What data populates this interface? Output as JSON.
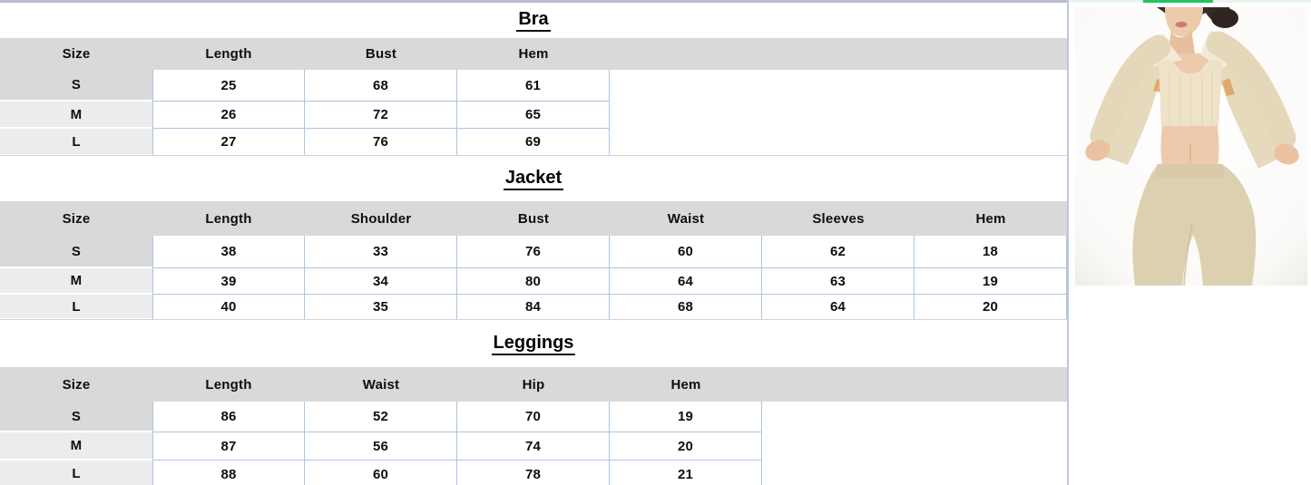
{
  "colors": {
    "header_gray": "#d9d9d9",
    "size_cell_gray": "#ececec",
    "cell_border_blue": "#a9c6e4",
    "top_accent_line": "#b6bad2",
    "panel_divider": "#bdc8da",
    "section_divider": "#d4d4d4",
    "progress_green": "#21c45d",
    "progress_track": "#e9f5ec",
    "text": "#0e0e0e"
  },
  "sections": [
    {
      "title": "Bra",
      "columns": [
        "Size",
        "Length",
        "Bust",
        "Hem"
      ],
      "rows": [
        {
          "size": "S",
          "values": [
            "25",
            "68",
            "61"
          ]
        },
        {
          "size": "M",
          "values": [
            "26",
            "72",
            "65"
          ]
        },
        {
          "size": "L",
          "values": [
            "27",
            "76",
            "69"
          ]
        }
      ]
    },
    {
      "title": "Jacket",
      "columns": [
        "Size",
        "Length",
        "Shoulder",
        "Bust",
        "Waist",
        "Sleeves",
        "Hem"
      ],
      "rows": [
        {
          "size": "S",
          "values": [
            "38",
            "33",
            "76",
            "60",
            "62",
            "18"
          ]
        },
        {
          "size": "M",
          "values": [
            "39",
            "34",
            "80",
            "64",
            "63",
            "19"
          ]
        },
        {
          "size": "L",
          "values": [
            "40",
            "35",
            "84",
            "68",
            "64",
            "20"
          ]
        }
      ]
    },
    {
      "title": "Leggings",
      "columns": [
        "Size",
        "Length",
        "Waist",
        "Hip",
        "Hem"
      ],
      "rows": [
        {
          "size": "S",
          "values": [
            "86",
            "52",
            "70",
            "19"
          ]
        },
        {
          "size": "M",
          "values": [
            "87",
            "56",
            "74",
            "20"
          ]
        },
        {
          "size": "L",
          "values": [
            "88",
            "60",
            "78",
            "21"
          ]
        }
      ]
    }
  ],
  "product_image": {
    "alt": "Model wearing beige seamless three-piece workout set: open zip jacket, sports bra and high-waist leggings"
  }
}
